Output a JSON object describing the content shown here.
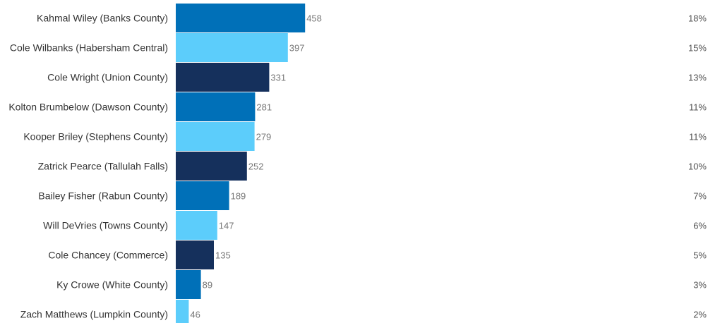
{
  "chart_data": {
    "type": "bar",
    "orientation": "horizontal",
    "title": "",
    "xlabel": "",
    "ylabel": "",
    "xlim": [
      0,
      1800
    ],
    "grid": false,
    "legend": "none",
    "colors": [
      "#0070b8",
      "#5ccdfb",
      "#15305c"
    ],
    "categories": [
      "Kahmal Wiley (Banks County)",
      "Cole Wilbanks (Habersham Central)",
      "Cole Wright (Union County)",
      "Kolton Brumbelow (Dawson County)",
      "Kooper Briley (Stephens County)",
      "Zatrick Pearce (Tallulah Falls)",
      "Bailey Fisher (Rabun County)",
      "Will DeVries (Towns County)",
      "Cole Chancey (Commerce)",
      "Ky Crowe (White County)",
      "Zach Matthews (Lumpkin County)"
    ],
    "values": [
      458,
      397,
      331,
      281,
      279,
      252,
      189,
      147,
      135,
      89,
      46
    ],
    "percent_labels": [
      "18%",
      "15%",
      "13%",
      "11%",
      "11%",
      "10%",
      "7%",
      "6%",
      "5%",
      "3%",
      "2%"
    ]
  }
}
